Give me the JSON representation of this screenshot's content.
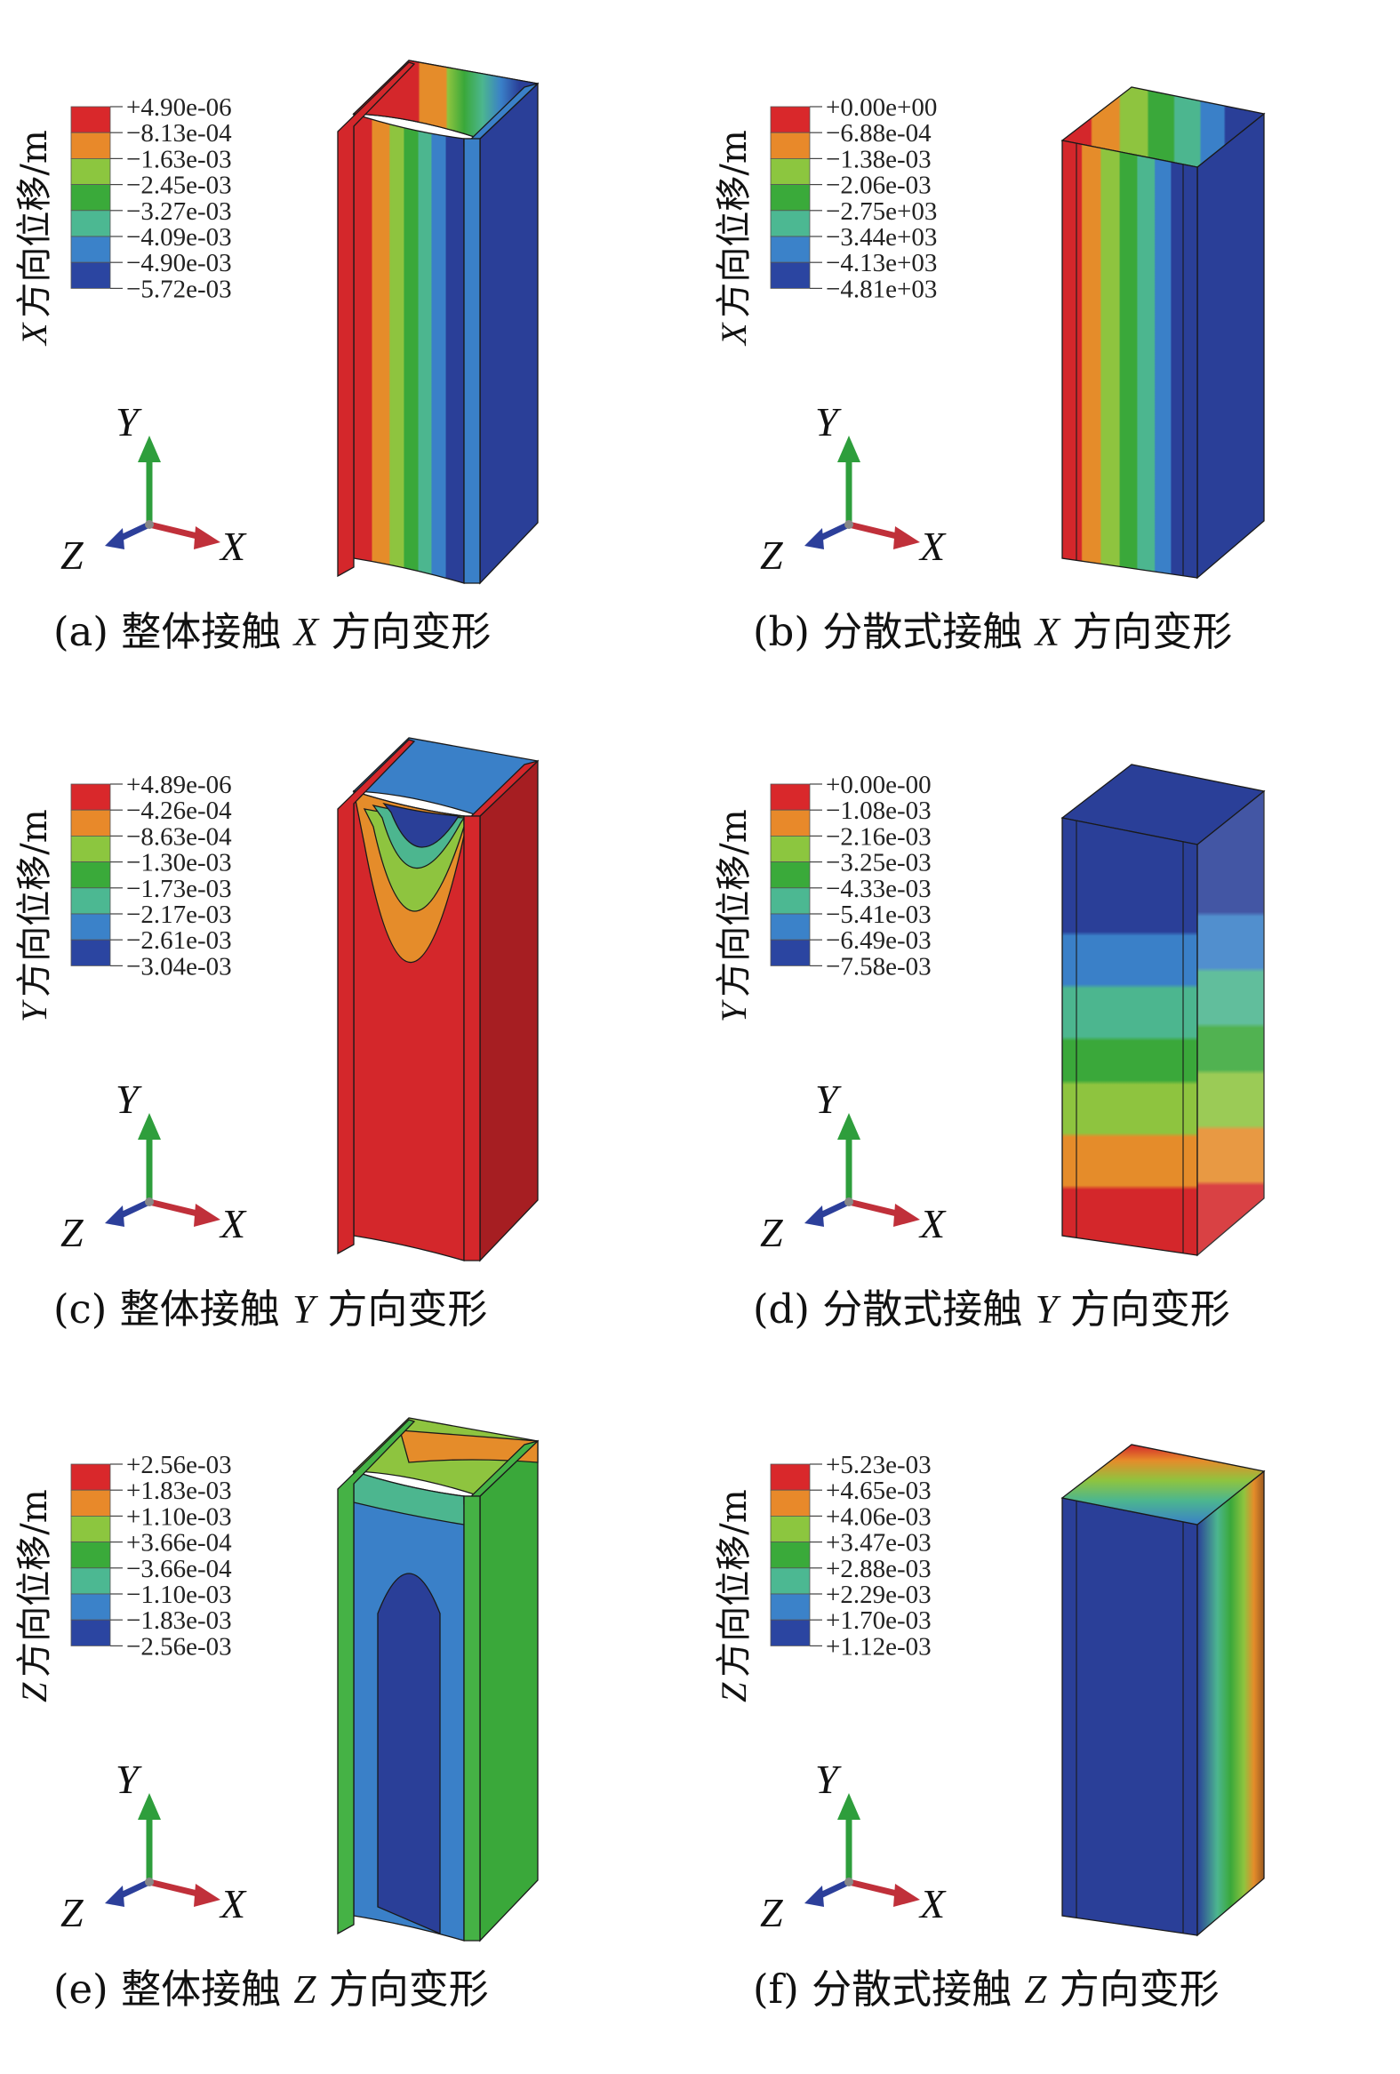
{
  "panels": [
    {
      "caption": {
        "tag": "(a)",
        "pre": "整体接触",
        "axis": "X",
        "post": "方向变形"
      },
      "legend_title": {
        "axis": "X",
        "rest": "方向位移/m"
      },
      "legend_values": [
        "+4.90e-06",
        "−8.13e-04",
        "−1.63e-03",
        "−2.45e-03",
        "−3.27e-03",
        "−4.09e-03",
        "−4.90e-03",
        "−5.72e-03"
      ],
      "triad": {
        "x": "X",
        "y": "Y",
        "z": "Z"
      }
    },
    {
      "caption": {
        "tag": "(b)",
        "pre": "分散式接触",
        "axis": "X",
        "post": "方向变形"
      },
      "legend_title": {
        "axis": "X",
        "rest": "方向位移/m"
      },
      "legend_values": [
        "+0.00e+00",
        "−6.88e-04",
        "−1.38e-03",
        "−2.06e-03",
        "−2.75e+03",
        "−3.44e+03",
        "−4.13e+03",
        "−4.81e+03"
      ],
      "triad": {
        "x": "X",
        "y": "Y",
        "z": "Z"
      }
    },
    {
      "caption": {
        "tag": "(c)",
        "pre": "整体接触",
        "axis": "Y",
        "post": "方向变形"
      },
      "legend_title": {
        "axis": "Y",
        "rest": "方向位移/m"
      },
      "legend_values": [
        "+4.89e-06",
        "−4.26e-04",
        "−8.63e-04",
        "−1.30e-03",
        "−1.73e-03",
        "−2.17e-03",
        "−2.61e-03",
        "−3.04e-03"
      ],
      "triad": {
        "x": "X",
        "y": "Y",
        "z": "Z"
      }
    },
    {
      "caption": {
        "tag": "(d)",
        "pre": "分散式接触",
        "axis": "Y",
        "post": "方向变形"
      },
      "legend_title": {
        "axis": "Y",
        "rest": "方向位移/m"
      },
      "legend_values": [
        "+0.00e-00",
        "−1.08e-03",
        "−2.16e-03",
        "−3.25e-03",
        "−4.33e-03",
        "−5.41e-03",
        "−6.49e-03",
        "−7.58e-03"
      ],
      "triad": {
        "x": "X",
        "y": "Y",
        "z": "Z"
      }
    },
    {
      "caption": {
        "tag": "(e)",
        "pre": "整体接触",
        "axis": "Z",
        "post": "方向变形"
      },
      "legend_title": {
        "axis": "Z",
        "rest": "方向位移/m"
      },
      "legend_values": [
        "+2.56e-03",
        "+1.83e-03",
        "+1.10e-03",
        "+3.66e-04",
        "−3.66e-04",
        "−1.10e-03",
        "−1.83e-03",
        "−2.56e-03"
      ],
      "triad": {
        "x": "X",
        "y": "Y",
        "z": "Z"
      }
    },
    {
      "caption": {
        "tag": "(f)",
        "pre": "分散式接触",
        "axis": "Z",
        "post": "方向变形"
      },
      "legend_title": {
        "axis": "Z",
        "rest": "方向位移/m"
      },
      "legend_values": [
        "+5.23e-03",
        "+4.65e-03",
        "+4.06e-03",
        "+3.47e-03",
        "+2.88e-03",
        "+2.29e-03",
        "+1.70e-03",
        "+1.12e-03"
      ],
      "triad": {
        "x": "X",
        "y": "Y",
        "z": "Z"
      }
    }
  ],
  "colors": {
    "legend_swatches": [
      "#d9282b",
      "#e8892a",
      "#8cc63f",
      "#3aaa3a",
      "#4cb892",
      "#3b82c9",
      "#2b45a1"
    ],
    "triad_x": "#c0303a",
    "triad_y": "#2e9e3c",
    "triad_z": "#2c3f9a"
  }
}
